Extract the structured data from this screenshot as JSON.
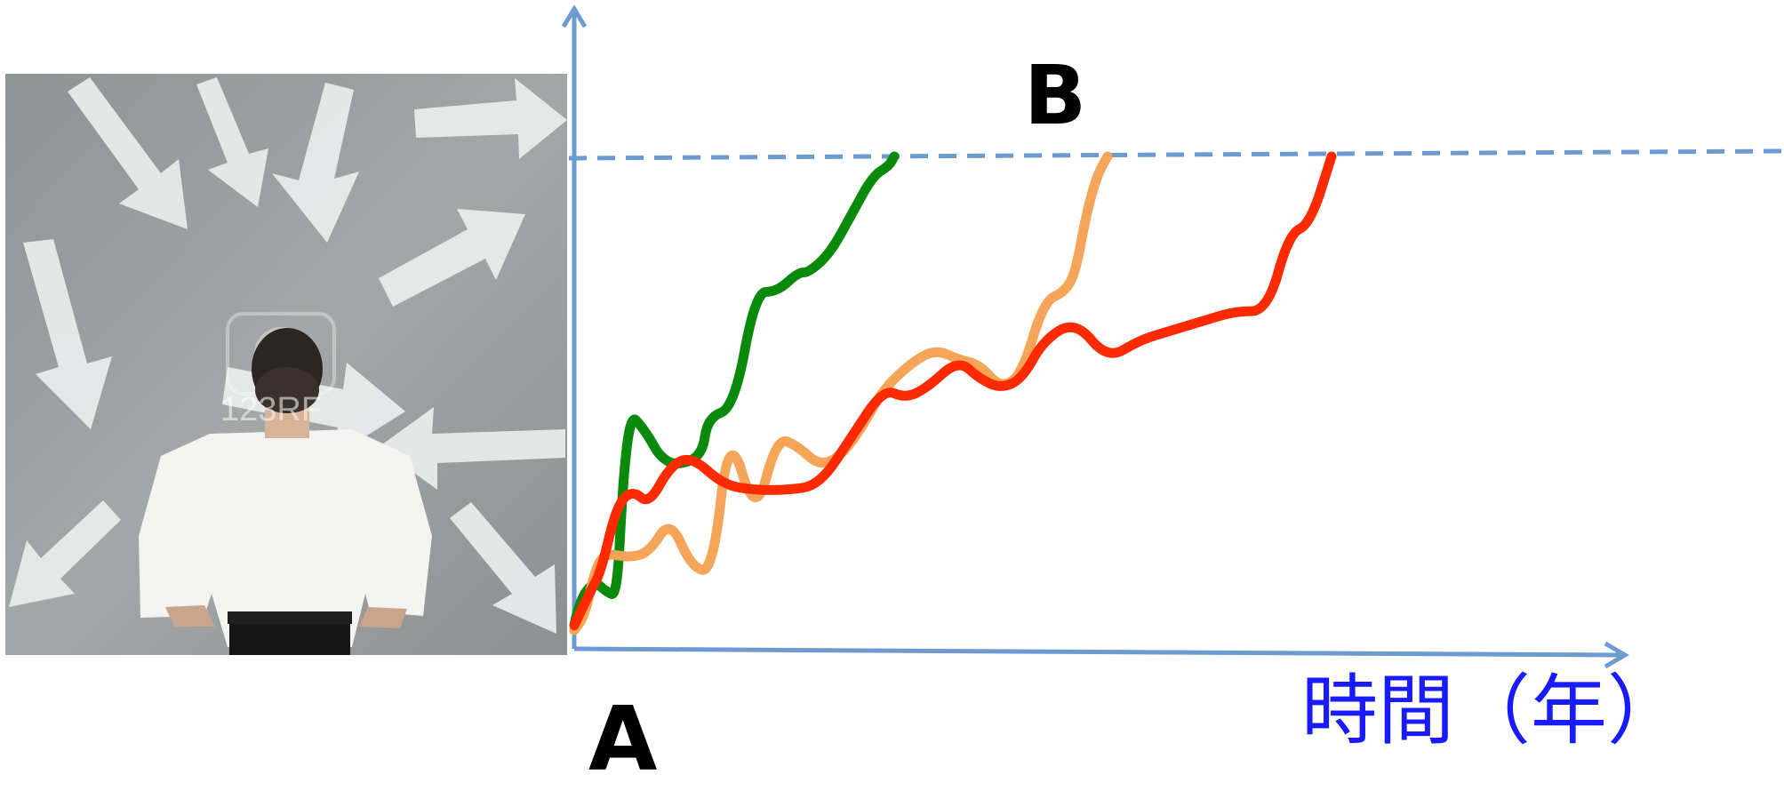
{
  "labels": {
    "start": "A",
    "goal": "B"
  },
  "axis": {
    "x_title": "時間（年）"
  },
  "photo": {
    "watermark": "123RF",
    "subject": "man-facing-arrow-wall"
  },
  "colors": {
    "axis": "#6b9bd0",
    "goal_line": "#6b9bd0",
    "path_green": "#0a8a0a",
    "path_orange": "#f4a55a",
    "path_red": "#ff2a00",
    "axis_title": "#1a1aff"
  },
  "chart_data": {
    "type": "line",
    "title": "",
    "xlabel": "時間（年）",
    "ylabel": "",
    "grid": false,
    "series": [
      {
        "color": "#0a8a0a",
        "x": [
          0,
          3,
          10,
          20,
          30,
          40,
          45,
          50,
          55,
          60,
          70,
          80,
          95,
          120,
          125,
          150,
          170,
          190,
          210,
          220,
          240,
          260,
          280,
          295,
          300
        ],
        "y": [
          3,
          6,
          10,
          12,
          10,
          9,
          30,
          42,
          46,
          45,
          42,
          38,
          36,
          38,
          46,
          48,
          72,
          72,
          76,
          76,
          80,
          88,
          96,
          98,
          100
        ]
      },
      {
        "color": "#f4a55a",
        "x": [
          0,
          10,
          20,
          30,
          50,
          70,
          90,
          110,
          130,
          145,
          170,
          190,
          210,
          230,
          250,
          270,
          290,
          320,
          340,
          360,
          380,
          400,
          420,
          440,
          460,
          470,
          480,
          490,
          500
        ],
        "y": [
          2,
          5,
          15,
          18,
          17,
          18,
          25,
          15,
          14,
          44,
          25,
          42,
          40,
          36,
          38,
          44,
          52,
          58,
          60,
          58,
          57,
          52,
          55,
          70,
          72,
          76,
          88,
          96,
          100
        ]
      },
      {
        "color": "#ff2a00",
        "x": [
          0,
          15,
          25,
          40,
          55,
          70,
          90,
          110,
          140,
          170,
          200,
          230,
          260,
          290,
          310,
          330,
          360,
          380,
          400,
          420,
          440,
          470,
          500,
          530,
          560,
          590,
          620,
          650,
          670,
          690,
          710
        ],
        "y": [
          3,
          10,
          14,
          28,
          31,
          28,
          36,
          38,
          32,
          31,
          31,
          32,
          42,
          52,
          50,
          52,
          58,
          54,
          52,
          54,
          62,
          66,
          58,
          62,
          64,
          66,
          68,
          68,
          84,
          86,
          100
        ]
      }
    ]
  }
}
